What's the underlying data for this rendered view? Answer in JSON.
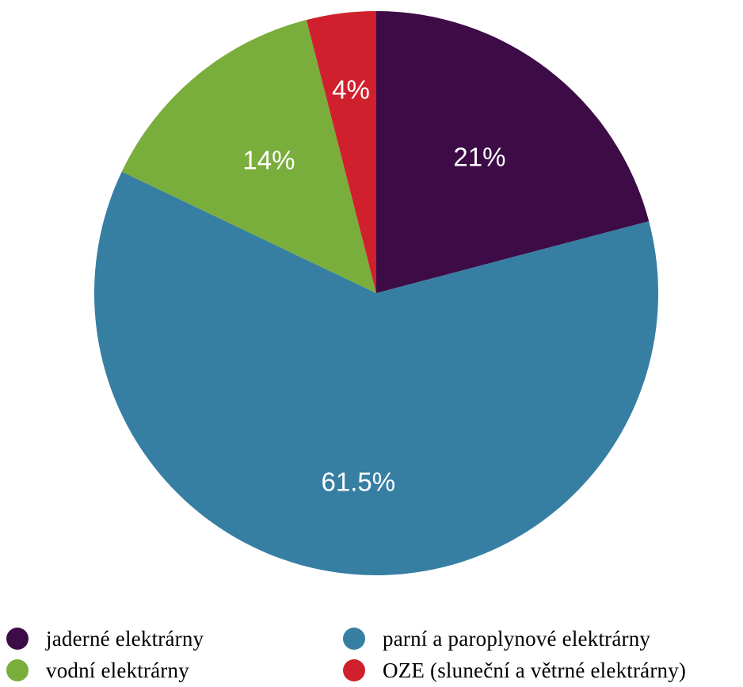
{
  "chart_data": {
    "type": "pie",
    "start_angle": "12 o'clock",
    "direction": "clockwise",
    "slices": [
      {
        "name": "jaderné elektrárny",
        "value": 21,
        "label": "21%",
        "color": "#3d0b46"
      },
      {
        "name": "parní a paroplynové elektrárny",
        "value": 61.5,
        "label": "61.5%",
        "color": "#367fa3"
      },
      {
        "name": "vodní elektrárny",
        "value": 14,
        "label": "14%",
        "color": "#7aae3c"
      },
      {
        "name": "OZE (sluneční a větrné elektrárny)",
        "value": 4,
        "label": "4%",
        "color": "#d0202d"
      }
    ],
    "legend": {
      "placement": "bottom",
      "columns": 2,
      "order": [
        0,
        1,
        2,
        3
      ]
    }
  }
}
